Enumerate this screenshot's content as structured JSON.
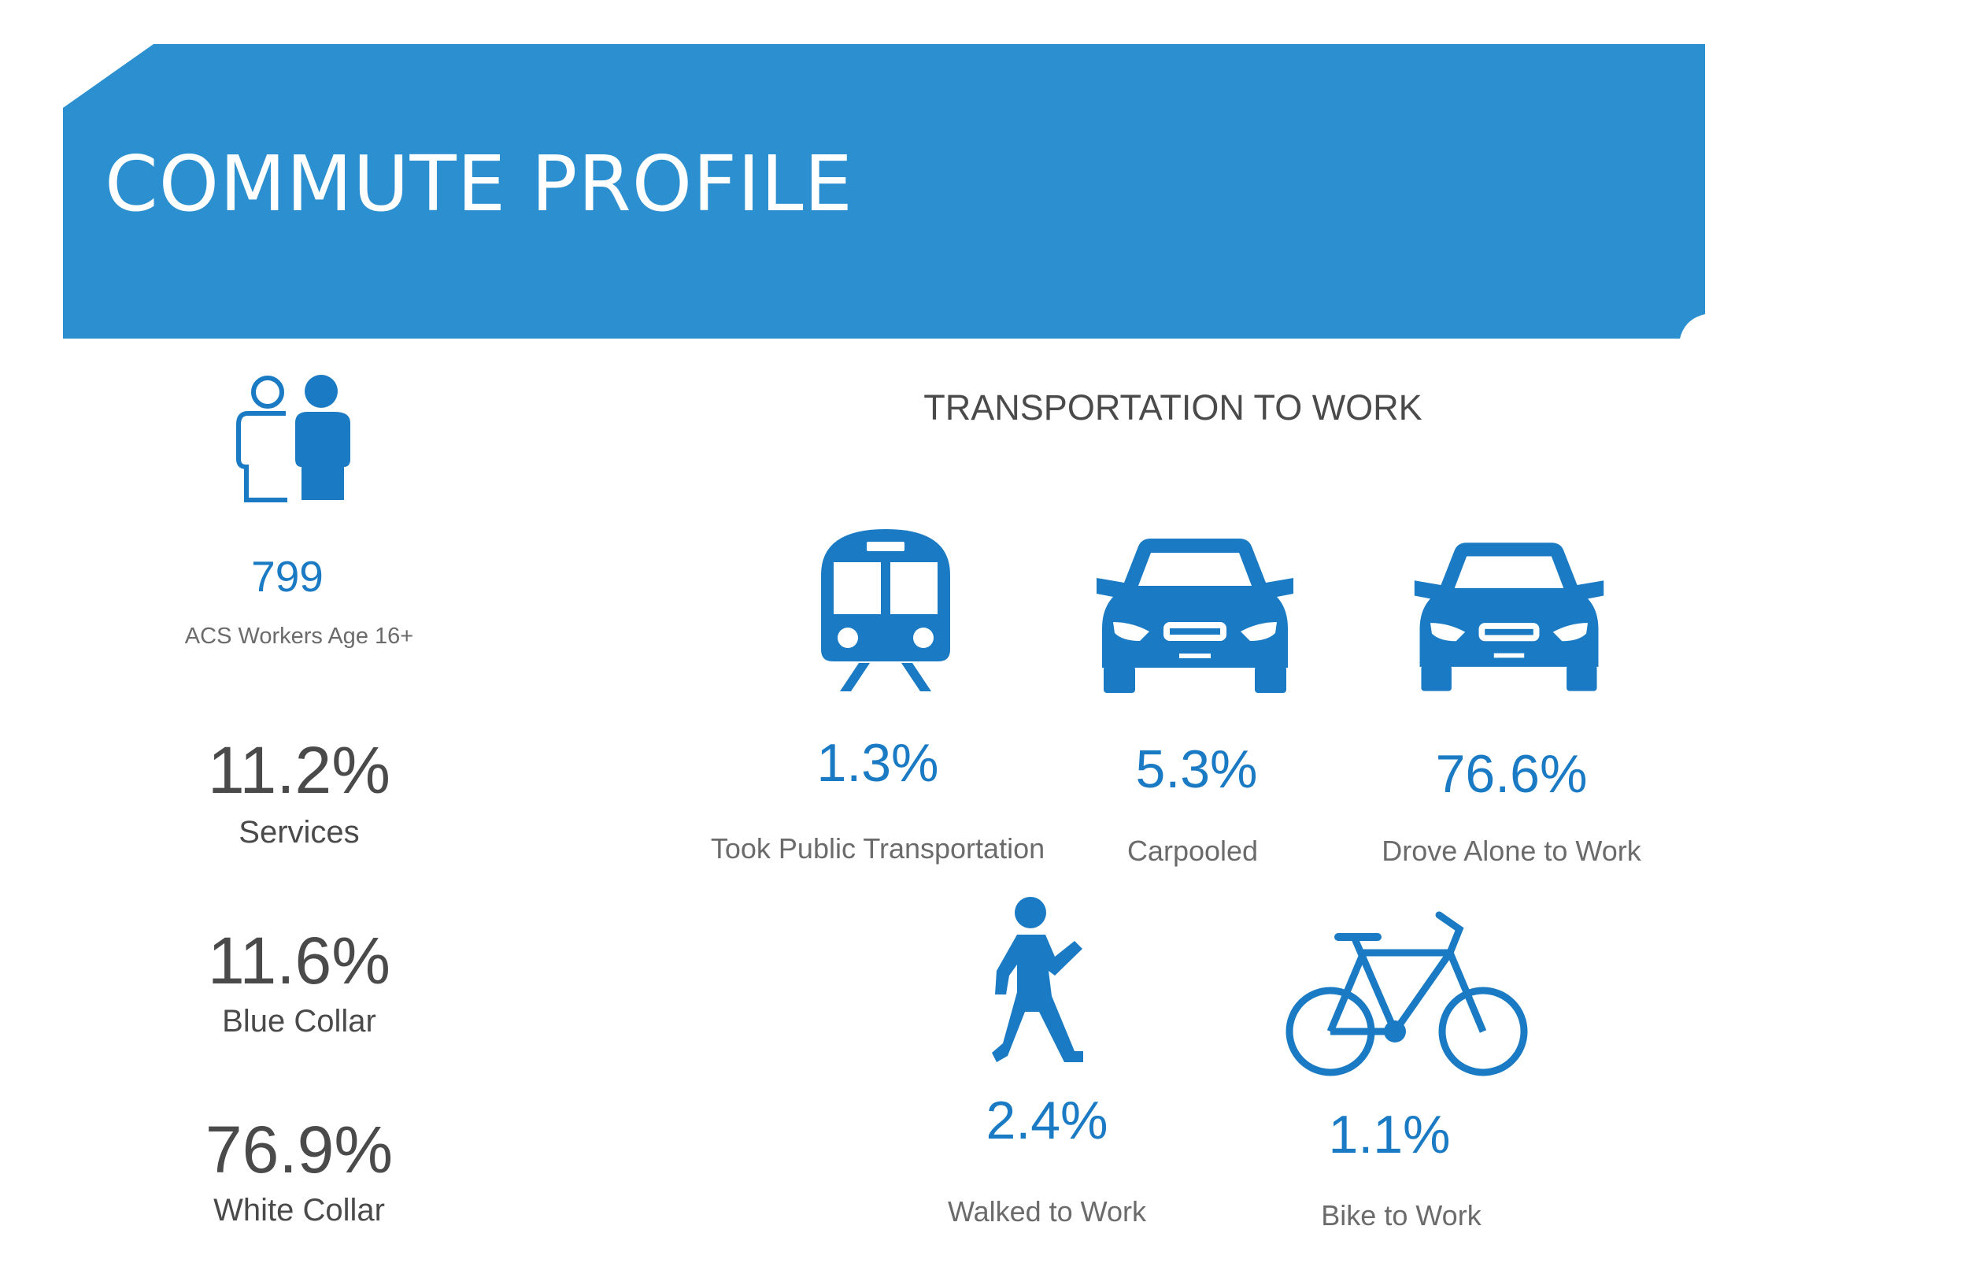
{
  "header": {
    "title": "COMMUTE PROFILE",
    "banner_color": "#2c90d0"
  },
  "workers": {
    "icon": "people-icon",
    "count": "799",
    "label": "ACS Workers Age 16+"
  },
  "occupations": [
    {
      "value": "11.2%",
      "label": "Services"
    },
    {
      "value": "11.6%",
      "label": "Blue Collar"
    },
    {
      "value": "76.9%",
      "label": "White Collar"
    }
  ],
  "transportation": {
    "title": "TRANSPORTATION TO WORK",
    "modes": [
      {
        "icon": "train-icon",
        "value": "1.3%",
        "label": "Took Public Transportation"
      },
      {
        "icon": "car-icon",
        "value": "5.3%",
        "label": "Carpooled"
      },
      {
        "icon": "car-icon",
        "value": "76.6%",
        "label": "Drove Alone to Work"
      },
      {
        "icon": "walking-person-icon",
        "value": "2.4%",
        "label": "Walked to Work"
      },
      {
        "icon": "bicycle-icon",
        "value": "1.1%",
        "label": "Bike to Work"
      }
    ]
  },
  "colors": {
    "accent": "#1a7bc4",
    "banner": "#2c90d0",
    "dark_text": "#4a4a4a",
    "grey_text": "#6b6b6b"
  }
}
